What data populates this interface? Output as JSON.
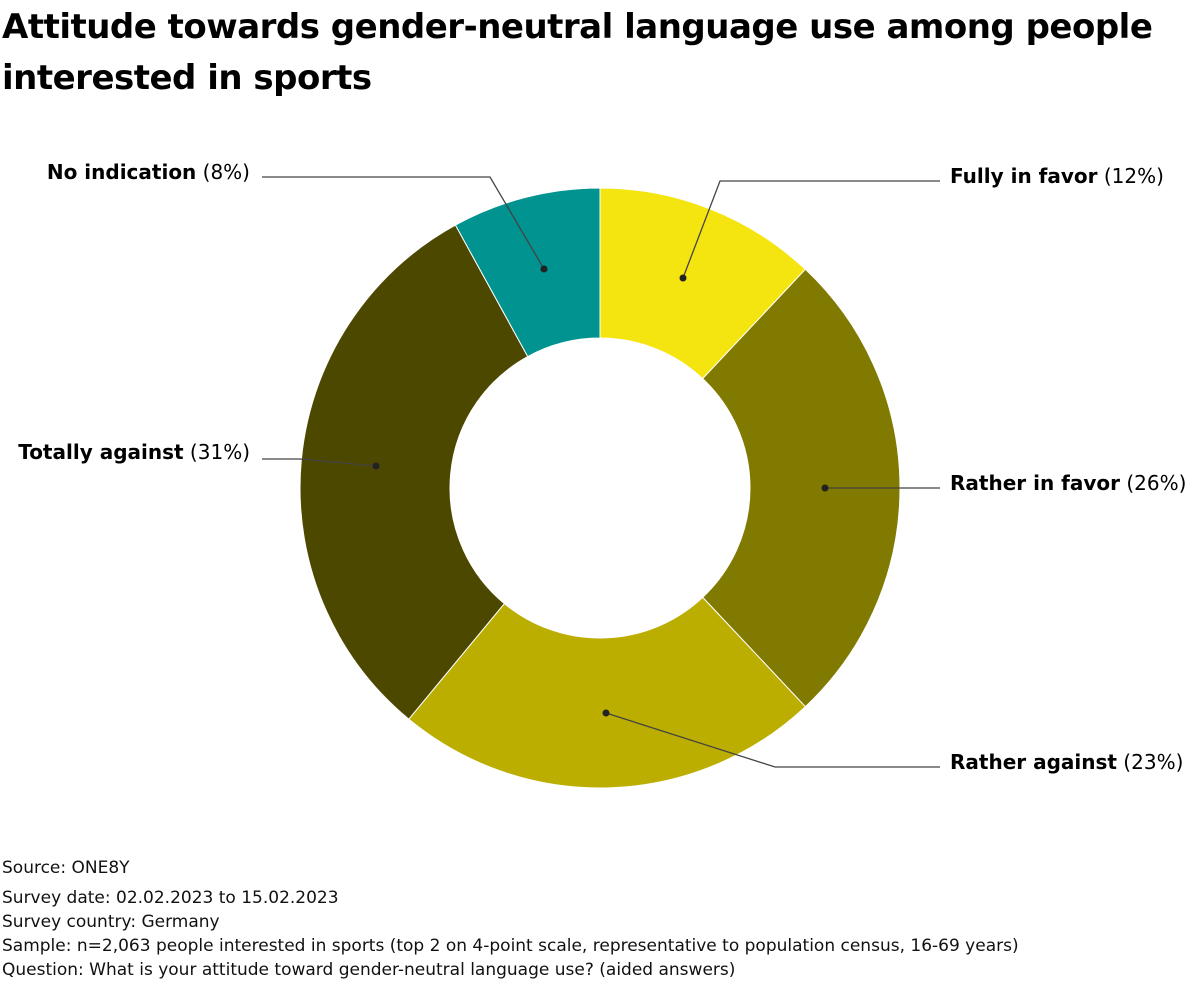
{
  "chart_data": {
    "type": "pie",
    "variant": "donut",
    "title": "Attitude towards gender-neutral language use among people interested in sports",
    "categories": [
      "Fully in favor",
      "Rather in favor",
      "Rather against",
      "Totally against",
      "No indication"
    ],
    "values": [
      12,
      26,
      23,
      31,
      8
    ],
    "value_labels": [
      "(12%)",
      "(26%)",
      "(23%)",
      "(31%)",
      "(8%)"
    ],
    "colors": [
      "#f4e511",
      "#807a00",
      "#bbae00",
      "#4d4800",
      "#009390"
    ],
    "unit": "%"
  },
  "footer": {
    "source": "Source: ONE8Y",
    "survey_date": "Survey date: 02.02.2023 to 15.02.2023",
    "survey_country": "Survey country: Germany",
    "sample": "Sample: n=2,063 people interested in sports (top 2 on 4-point scale, representative to population census, 16-69 years)",
    "question": "Question: What is your attitude toward gender-neutral language use? (aided answers)"
  }
}
